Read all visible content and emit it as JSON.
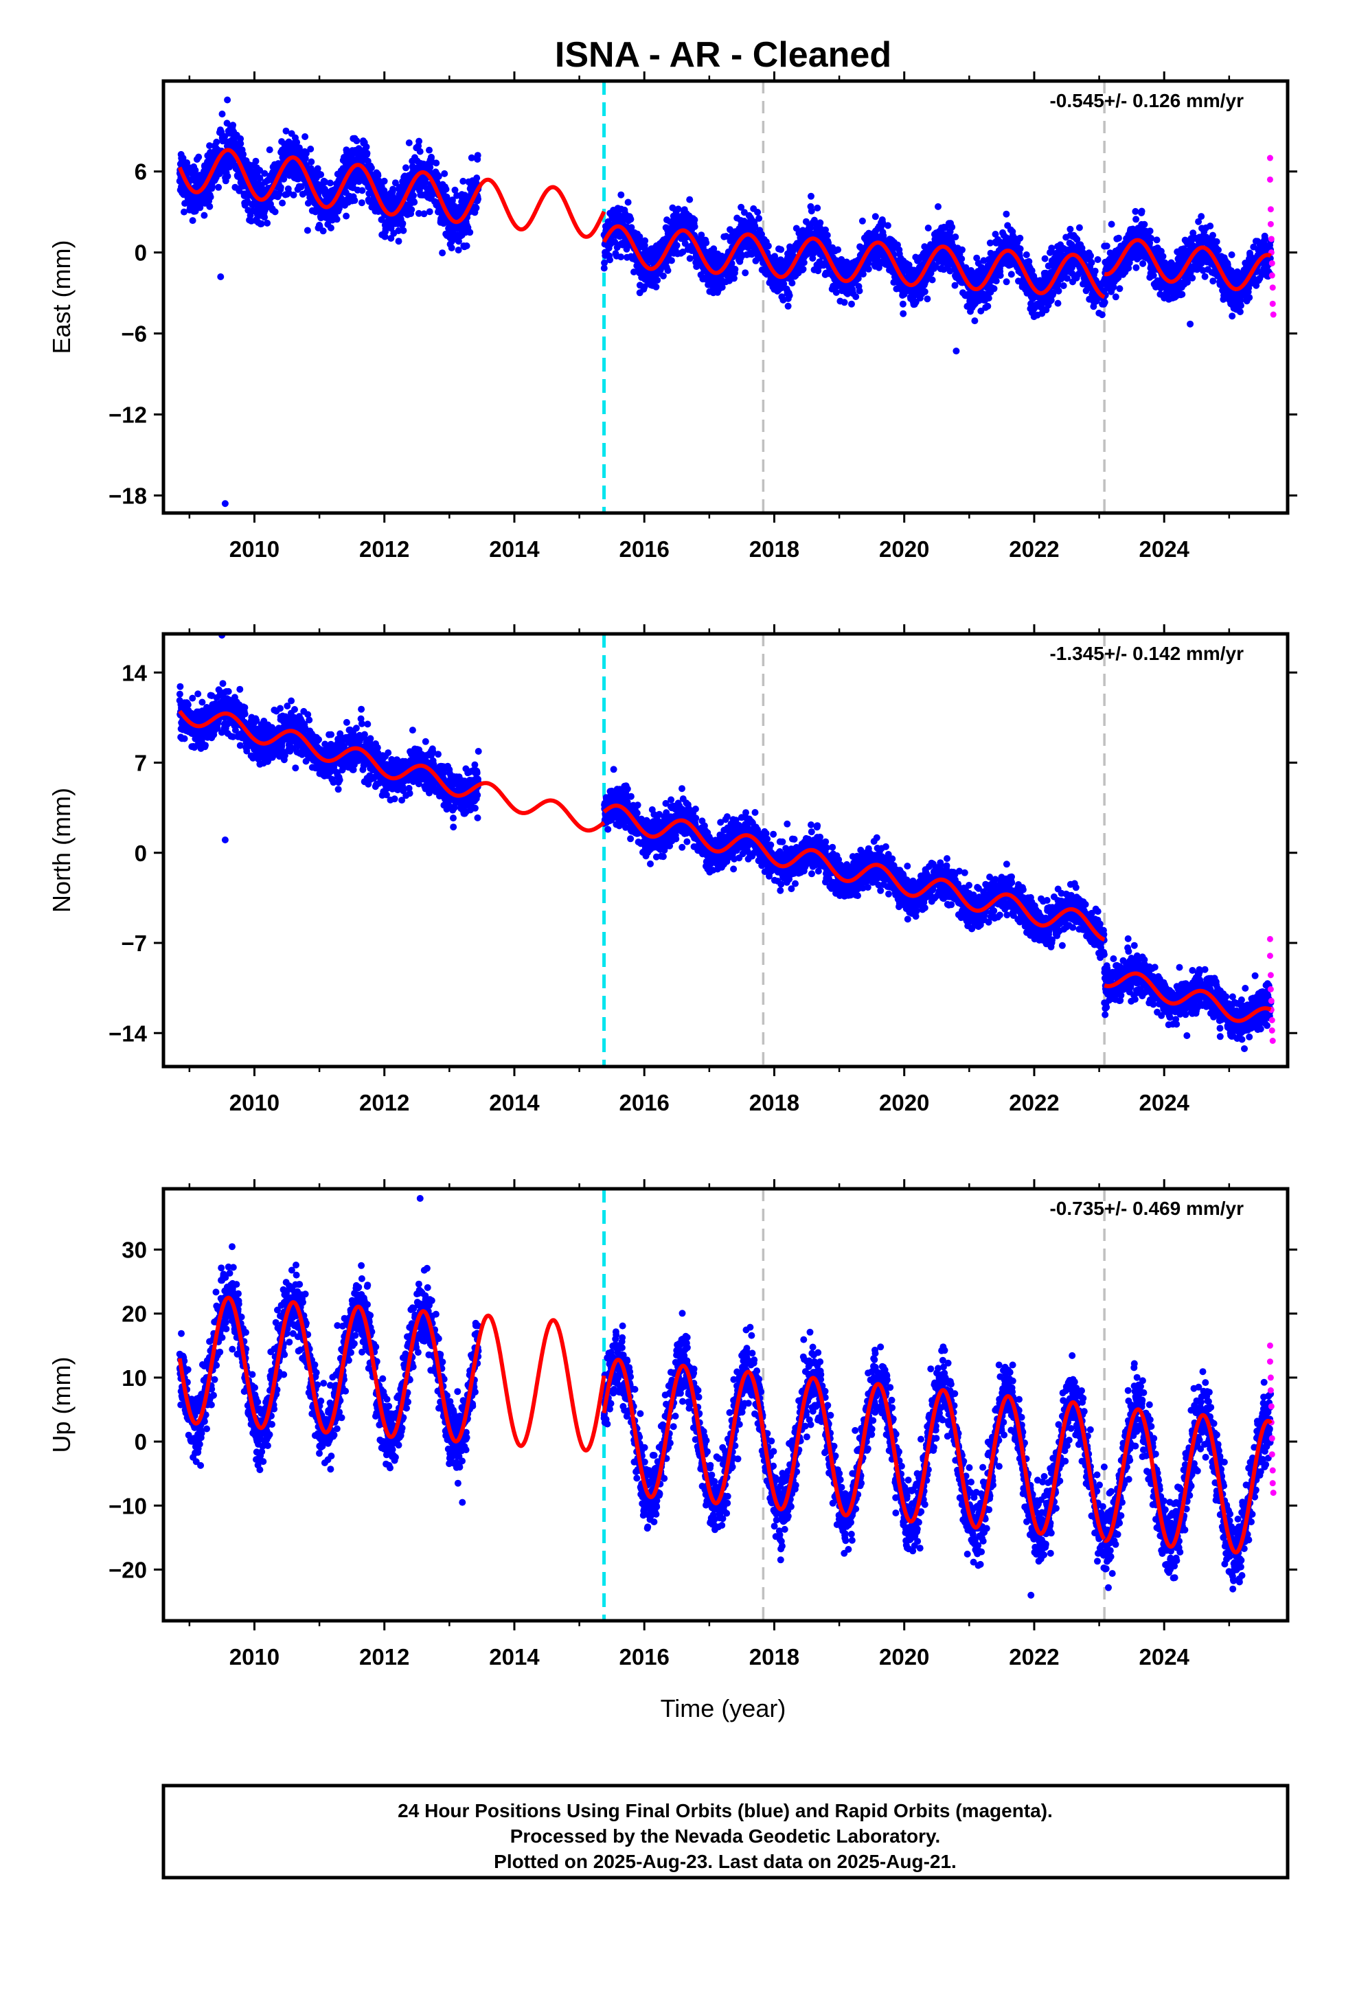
{
  "title": "ISNA  - AR - Cleaned",
  "xlabel": "Time (year)",
  "footer": {
    "line1": "24 Hour Positions Using Final Orbits (blue) and Rapid Orbits (magenta).",
    "line2": "Processed by the Nevada Geodetic Laboratory.",
    "line3": "Plotted on 2025-Aug-23. Last data on 2025-Aug-21."
  },
  "colors": {
    "final_orbits": "#0000ff",
    "rapid_orbits": "#ff00ff",
    "model": "#ff0000",
    "equipment_change": "#00e5ee",
    "other_event": "#c0c0c0"
  },
  "chart_data": [
    {
      "type": "scatter",
      "component": "East",
      "ylabel": "East (mm)",
      "rate": "-0.545+/- 0.126 mm/yr",
      "xlim": [
        2008.6,
        2025.9
      ],
      "ylim": [
        -19.3,
        12.7
      ],
      "xticks": [
        "2010",
        "2012",
        "2014",
        "2016",
        "2018",
        "2020",
        "2022",
        "2024"
      ],
      "yticks": [
        "6",
        "0",
        "−6",
        "−12",
        "−18"
      ],
      "events": [
        {
          "year": 2015.38,
          "kind": "equipment_change"
        },
        {
          "year": 2017.83,
          "kind": "other_event"
        },
        {
          "year": 2023.08,
          "kind": "other_event"
        }
      ],
      "data_gap": [
        2013.45,
        2015.38
      ],
      "segments": [
        {
          "start": 2008.85,
          "end": 2015.38,
          "offset_at_start": 6.3,
          "trend": -0.55,
          "annual_amplitude": 1.7,
          "noise": 1.3
        },
        {
          "start": 2015.38,
          "end": 2023.08,
          "offset_at_start": 0.5,
          "trend": -0.3,
          "annual_amplitude": 1.5,
          "noise": 1.1
        },
        {
          "start": 2023.08,
          "end": 2025.64,
          "offset_at_start": -0.2,
          "trend": -0.55,
          "annual_amplitude": 1.4,
          "noise": 1.1
        }
      ],
      "outliers": [
        [
          2009.55,
          -18.6
        ],
        [
          2009.48,
          -1.8
        ],
        [
          2020.8,
          -7.3
        ],
        [
          2024.4,
          -5.3
        ]
      ],
      "rapid_points": [
        [
          2025.63,
          7.0
        ],
        [
          2025.63,
          5.4
        ],
        [
          2025.64,
          3.2
        ],
        [
          2025.64,
          2.1
        ],
        [
          2025.65,
          1.0
        ],
        [
          2025.65,
          0.0
        ],
        [
          2025.66,
          -0.8
        ],
        [
          2025.66,
          -1.7
        ],
        [
          2025.67,
          -2.6
        ],
        [
          2025.67,
          -3.8
        ],
        [
          2025.68,
          -4.6
        ]
      ]
    },
    {
      "type": "scatter",
      "component": "North",
      "ylabel": "North (mm)",
      "rate": "-1.345+/- 0.142 mm/yr",
      "xlim": [
        2008.6,
        2025.9
      ],
      "ylim": [
        -16.6,
        17.0
      ],
      "xticks": [
        "2010",
        "2012",
        "2014",
        "2016",
        "2018",
        "2020",
        "2022",
        "2024"
      ],
      "yticks": [
        "14",
        "7",
        "0",
        "−7",
        "−14"
      ],
      "events": [
        {
          "year": 2015.38,
          "kind": "equipment_change"
        },
        {
          "year": 2017.83,
          "kind": "other_event"
        },
        {
          "year": 2023.08,
          "kind": "other_event"
        }
      ],
      "data_gap": [
        2013.45,
        2015.38
      ],
      "segments": [
        {
          "start": 2008.85,
          "end": 2015.38,
          "offset_at_start": 11.0,
          "trend": -1.35,
          "annual_amplitude": 0.8,
          "noise": 1.1
        },
        {
          "start": 2015.38,
          "end": 2023.08,
          "offset_at_start": 3.0,
          "trend": -1.15,
          "annual_amplitude": 0.9,
          "noise": 1.0
        },
        {
          "start": 2023.08,
          "end": 2025.64,
          "offset_at_start": -9.5,
          "trend": -1.35,
          "annual_amplitude": 0.8,
          "noise": 1.0
        }
      ],
      "outliers": [
        [
          2009.5,
          16.9
        ],
        [
          2009.55,
          1.0
        ],
        [
          2024.35,
          -14.2
        ]
      ],
      "rapid_points": [
        [
          2025.63,
          -6.7
        ],
        [
          2025.63,
          -8.0
        ],
        [
          2025.64,
          -9.5
        ],
        [
          2025.64,
          -10.6
        ],
        [
          2025.65,
          -11.5
        ],
        [
          2025.65,
          -12.2
        ],
        [
          2025.66,
          -13.0
        ],
        [
          2025.66,
          -13.8
        ],
        [
          2025.67,
          -14.6
        ]
      ]
    },
    {
      "type": "scatter",
      "component": "Up",
      "ylabel": "Up (mm)",
      "rate": "-0.735+/- 0.469 mm/yr",
      "xlim": [
        2008.6,
        2025.9
      ],
      "ylim": [
        -28.0,
        39.5
      ],
      "xticks": [
        "2010",
        "2012",
        "2014",
        "2016",
        "2018",
        "2020",
        "2022",
        "2024"
      ],
      "yticks": [
        "30",
        "20",
        "10",
        "0",
        "−10",
        "−20"
      ],
      "events": [
        {
          "year": 2015.38,
          "kind": "equipment_change"
        },
        {
          "year": 2017.83,
          "kind": "other_event"
        },
        {
          "year": 2023.08,
          "kind": "other_event"
        }
      ],
      "data_gap": [
        2013.45,
        2015.38
      ],
      "segments": [
        {
          "start": 2008.85,
          "end": 2015.38,
          "offset_at_start": 13.0,
          "trend": -0.7,
          "annual_amplitude": 10.0,
          "noise": 3.5
        },
        {
          "start": 2015.38,
          "end": 2023.08,
          "offset_at_start": 2.5,
          "trend": -0.95,
          "annual_amplitude": 10.5,
          "noise": 3.5
        },
        {
          "start": 2023.08,
          "end": 2025.64,
          "offset_at_start": -5.0,
          "trend": -0.9,
          "annual_amplitude": 10.5,
          "noise": 3.8
        }
      ],
      "outliers": [
        [
          2012.55,
          38.0
        ],
        [
          2013.2,
          -9.5
        ],
        [
          2021.95,
          -24.0
        ]
      ],
      "rapid_points": [
        [
          2025.63,
          15.0
        ],
        [
          2025.63,
          12.5
        ],
        [
          2025.64,
          10.0
        ],
        [
          2025.64,
          8.0
        ],
        [
          2025.65,
          5.5
        ],
        [
          2025.65,
          3.0
        ],
        [
          2025.66,
          0.5
        ],
        [
          2025.66,
          -2.0
        ],
        [
          2025.67,
          -4.5
        ],
        [
          2025.67,
          -6.5
        ],
        [
          2025.68,
          -8.0
        ]
      ]
    }
  ]
}
